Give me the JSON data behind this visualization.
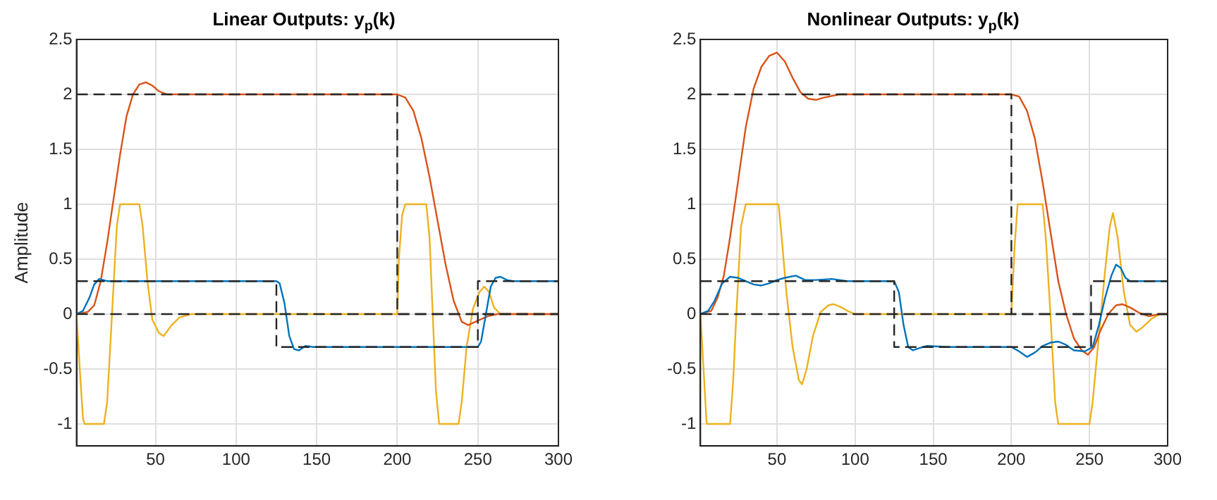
{
  "chart_data": [
    {
      "type": "line",
      "title": "Linear Outputs: y$_{p}$(k)",
      "ylabel": "Amplitude",
      "xlim": [
        1,
        300
      ],
      "xticks": [
        50,
        100,
        150,
        200,
        250,
        300
      ],
      "ylim": [
        -1.2,
        2.5
      ],
      "yticks": [
        -1,
        -0.5,
        0,
        0.5,
        1,
        1.5,
        2,
        2.5
      ],
      "grid": true,
      "legend": false,
      "marker": "none",
      "series": [
        {
          "color": "#262626",
          "line_style": "dashed",
          "x": [
            1,
            200,
            200,
            300
          ],
          "values": [
            2,
            2,
            0,
            0
          ]
        },
        {
          "color": "#262626",
          "line_style": "dashed",
          "x": [
            1,
            125,
            125,
            250,
            250,
            300
          ],
          "values": [
            0.3,
            0.3,
            -0.3,
            -0.3,
            0.3,
            0.3
          ]
        },
        {
          "color": "#262626",
          "line_style": "dashed",
          "x": [
            1,
            300
          ],
          "values": [
            0,
            0
          ]
        },
        {
          "color": "#0072bd",
          "line_style": "solid",
          "x": [
            1,
            5,
            9,
            12,
            15,
            20,
            125,
            127,
            130,
            133,
            136,
            139,
            143,
            148,
            250,
            252,
            255,
            258,
            261,
            264,
            268,
            272,
            300
          ],
          "values": [
            0,
            0.03,
            0.15,
            0.27,
            0.32,
            0.3,
            0.3,
            0.28,
            0.1,
            -0.2,
            -0.32,
            -0.33,
            -0.29,
            -0.3,
            -0.3,
            -0.25,
            0,
            0.25,
            0.33,
            0.34,
            0.31,
            0.3,
            0.3
          ]
        },
        {
          "color": "#d95319",
          "line_style": "solid",
          "x": [
            1,
            8,
            12,
            16,
            20,
            24,
            28,
            32,
            36,
            40,
            44,
            48,
            52,
            57,
            200,
            205,
            210,
            215,
            220,
            225,
            230,
            235,
            240,
            244,
            250,
            256,
            262,
            300
          ],
          "values": [
            0,
            0.02,
            0.08,
            0.3,
            0.65,
            1.05,
            1.45,
            1.8,
            2.0,
            2.09,
            2.11,
            2.08,
            2.03,
            2.0,
            2.0,
            1.97,
            1.85,
            1.6,
            1.25,
            0.85,
            0.45,
            0.12,
            -0.07,
            -0.1,
            -0.06,
            -0.02,
            0,
            0
          ]
        },
        {
          "color": "#edb120",
          "line_style": "solid",
          "x": [
            1,
            3,
            5,
            6,
            18,
            20,
            23,
            26,
            28,
            40,
            42,
            45,
            48,
            52,
            55,
            60,
            65,
            72,
            200,
            201,
            203,
            205,
            218,
            220,
            222,
            224,
            226,
            238,
            240,
            243,
            247,
            251,
            254,
            257,
            260,
            264,
            300
          ],
          "values": [
            0,
            -0.5,
            -0.95,
            -1,
            -1,
            -0.8,
            0,
            0.8,
            1,
            1,
            0.8,
            0.3,
            -0.05,
            -0.17,
            -0.2,
            -0.1,
            -0.03,
            0,
            0,
            0.5,
            0.9,
            1,
            1,
            0.7,
            0,
            -0.7,
            -1,
            -1,
            -0.8,
            -0.3,
            0.05,
            0.2,
            0.25,
            0.2,
            0.06,
            0,
            0
          ]
        }
      ]
    },
    {
      "type": "line",
      "title": "Nonlinear Outputs: y$_{p}$(k)",
      "xlim": [
        1,
        300
      ],
      "xticks": [
        50,
        100,
        150,
        200,
        250,
        300
      ],
      "ylim": [
        -1.2,
        2.5
      ],
      "yticks": [
        -1,
        -0.5,
        0,
        0.5,
        1,
        1.5,
        2,
        2.5
      ],
      "grid": true,
      "legend": false,
      "marker": "none",
      "series": [
        {
          "color": "#262626",
          "line_style": "dashed",
          "x": [
            1,
            200,
            200,
            300
          ],
          "values": [
            2,
            2,
            0,
            0
          ]
        },
        {
          "color": "#262626",
          "line_style": "dashed",
          "x": [
            1,
            125,
            125,
            251,
            251,
            300
          ],
          "values": [
            0.3,
            0.3,
            -0.3,
            -0.3,
            0.3,
            0.3
          ]
        },
        {
          "color": "#262626",
          "line_style": "dashed",
          "x": [
            1,
            300
          ],
          "values": [
            0,
            0
          ]
        },
        {
          "color": "#0072bd",
          "line_style": "solid",
          "x": [
            1,
            6,
            10,
            15,
            20,
            25,
            30,
            35,
            40,
            45,
            50,
            55,
            62,
            68,
            75,
            85,
            95,
            125,
            128,
            131,
            134,
            137,
            141,
            146,
            160,
            200,
            205,
            210,
            215,
            220,
            225,
            230,
            235,
            240,
            247,
            252,
            256,
            260,
            264,
            267,
            270,
            273,
            276,
            282,
            300
          ],
          "values": [
            0,
            0.03,
            0.12,
            0.28,
            0.34,
            0.33,
            0.3,
            0.27,
            0.26,
            0.28,
            0.31,
            0.33,
            0.35,
            0.31,
            0.31,
            0.32,
            0.3,
            0.3,
            0.2,
            -0.1,
            -0.3,
            -0.33,
            -0.31,
            -0.29,
            -0.3,
            -0.3,
            -0.34,
            -0.39,
            -0.35,
            -0.29,
            -0.26,
            -0.25,
            -0.28,
            -0.33,
            -0.34,
            -0.3,
            -0.1,
            0.15,
            0.35,
            0.45,
            0.42,
            0.33,
            0.3,
            0.3,
            0.3
          ]
        },
        {
          "color": "#d95319",
          "line_style": "solid",
          "x": [
            1,
            8,
            12,
            16,
            20,
            25,
            30,
            35,
            40,
            45,
            50,
            55,
            60,
            65,
            70,
            75,
            80,
            90,
            200,
            205,
            210,
            215,
            220,
            225,
            230,
            235,
            240,
            245,
            249,
            253,
            257,
            262,
            267,
            271,
            276,
            282,
            288,
            295,
            300
          ],
          "values": [
            0,
            0.03,
            0.15,
            0.35,
            0.7,
            1.2,
            1.7,
            2.05,
            2.25,
            2.35,
            2.38,
            2.3,
            2.15,
            2.02,
            1.96,
            1.95,
            1.97,
            2.0,
            2.0,
            1.98,
            1.85,
            1.6,
            1.2,
            0.75,
            0.3,
            0,
            -0.22,
            -0.33,
            -0.37,
            -0.3,
            -0.15,
            0,
            0.08,
            0.09,
            0.06,
            0.01,
            -0.02,
            0,
            0
          ]
        },
        {
          "color": "#edb120",
          "line_style": "solid",
          "x": [
            1,
            3,
            5,
            20,
            22,
            24,
            27,
            30,
            51,
            53,
            56,
            60,
            64,
            66,
            69,
            73,
            78,
            83,
            86,
            90,
            95,
            100,
            200,
            202,
            204,
            220,
            222,
            225,
            228,
            230,
            250,
            252,
            256,
            260,
            263,
            265,
            268,
            272,
            276,
            280,
            284,
            290,
            295,
            300
          ],
          "values": [
            0,
            -0.5,
            -1,
            -1,
            -0.6,
            0,
            0.8,
            1,
            1,
            0.7,
            0.2,
            -0.3,
            -0.6,
            -0.64,
            -0.5,
            -0.2,
            0.02,
            0.08,
            0.09,
            0.07,
            0.03,
            0,
            0,
            0.6,
            1,
            1,
            0.7,
            0,
            -0.8,
            -1,
            -1,
            -0.8,
            -0.2,
            0.4,
            0.8,
            0.92,
            0.7,
            0.2,
            -0.1,
            -0.16,
            -0.12,
            -0.04,
            0,
            0
          ]
        }
      ]
    }
  ]
}
